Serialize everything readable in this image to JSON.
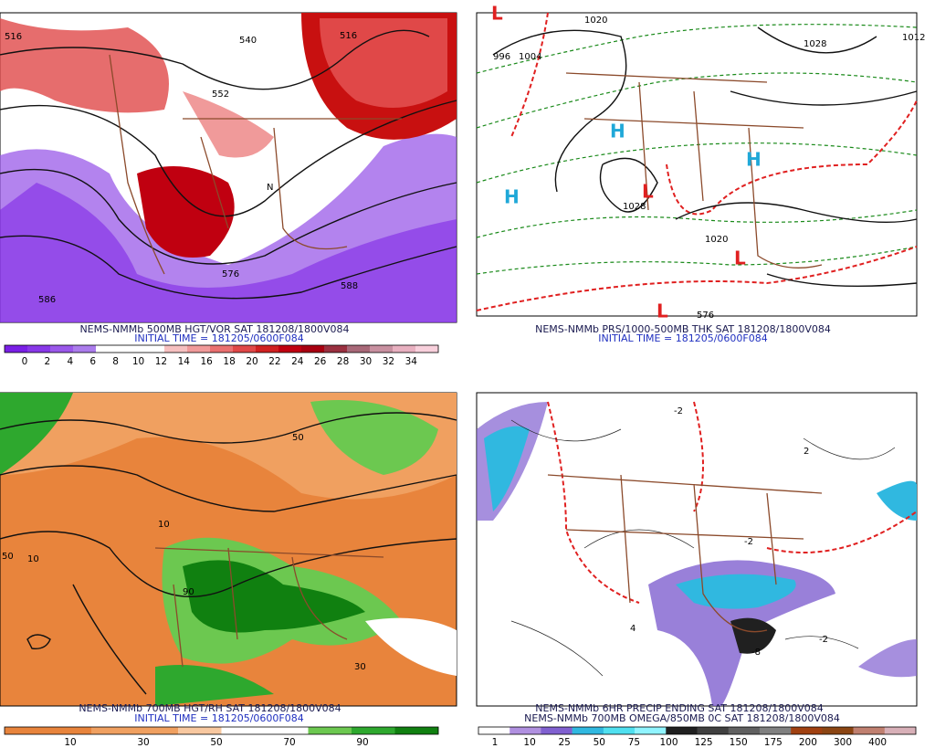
{
  "panels": [
    {
      "caption": [
        "NEMS-NMMb 500MB HGT/VOR SAT 181208/1800V084",
        "INITIAL TIME = 181205/0600F084"
      ],
      "map_labels": [
        "516",
        "540",
        "516",
        "552",
        "576",
        "588",
        "586",
        "N"
      ],
      "colorbar": {
        "labels": [
          0,
          2,
          4,
          6,
          8,
          10,
          12,
          14,
          16,
          18,
          20,
          22,
          24,
          26,
          28,
          30,
          32,
          34
        ],
        "colors": [
          "#7a1fe6",
          "#8838e8",
          "#9a58ea",
          "#ab7cec",
          "#ffffff",
          "#ffffff",
          "#ffffff",
          "#f6c0c0",
          "#f09a9a",
          "#ea7070",
          "#e04848",
          "#d02020",
          "#c00010",
          "#a80010",
          "#9a3040",
          "#a86878",
          "#c890a0",
          "#e8b0c0",
          "#f8d0dc"
        ]
      }
    },
    {
      "caption": [
        "NEMS-NMMb PRS/1000-500MB THK SAT 181208/1800V084",
        "INITIAL TIME = 181205/0600F084"
      ],
      "map_labels": [
        "1020",
        "1028",
        "1012",
        "996",
        "1004",
        "1028",
        "1020",
        "576",
        "H",
        "H",
        "H",
        "L",
        "L",
        "L",
        "L"
      ]
    },
    {
      "caption": [
        "NEMS-NMMb 700MB HGT/RH SAT 181208/1800V084",
        "INITIAL TIME = 181205/0600F084"
      ],
      "map_labels": [
        "10",
        "50",
        "90",
        "10",
        "50",
        "30"
      ],
      "colorbar": {
        "labels": [
          10,
          30,
          50,
          70,
          90
        ],
        "colors": [
          "#e8843c",
          "#e8843c",
          "#f0a060",
          "#f0a060",
          "#f8c8a0",
          "#ffffff",
          "#ffffff",
          "#6cc850",
          "#2ea82e",
          "#108010"
        ]
      }
    },
    {
      "caption": [
        "NEMS-NMMb 6HR PRECIP ENDING SAT 181208/1800V084",
        "NEMS-NMMb 700MB OMEGA/850MB 0C SAT 181208/1800V084"
      ],
      "map_labels": [
        "-2",
        "-2",
        "2",
        "-2",
        "4",
        "-8"
      ],
      "colorbar": {
        "labels": [
          1,
          10,
          25,
          50,
          75,
          100,
          125,
          150,
          175,
          200,
          300,
          400
        ],
        "colors": [
          "#ffffff",
          "#b090e0",
          "#8060d0",
          "#30b8e0",
          "#50e0f0",
          "#90f4ff",
          "#202020",
          "#404040",
          "#606060",
          "#808080",
          "#a04010",
          "#8b4513",
          "#c08070",
          "#d8b0b8"
        ]
      }
    }
  ]
}
